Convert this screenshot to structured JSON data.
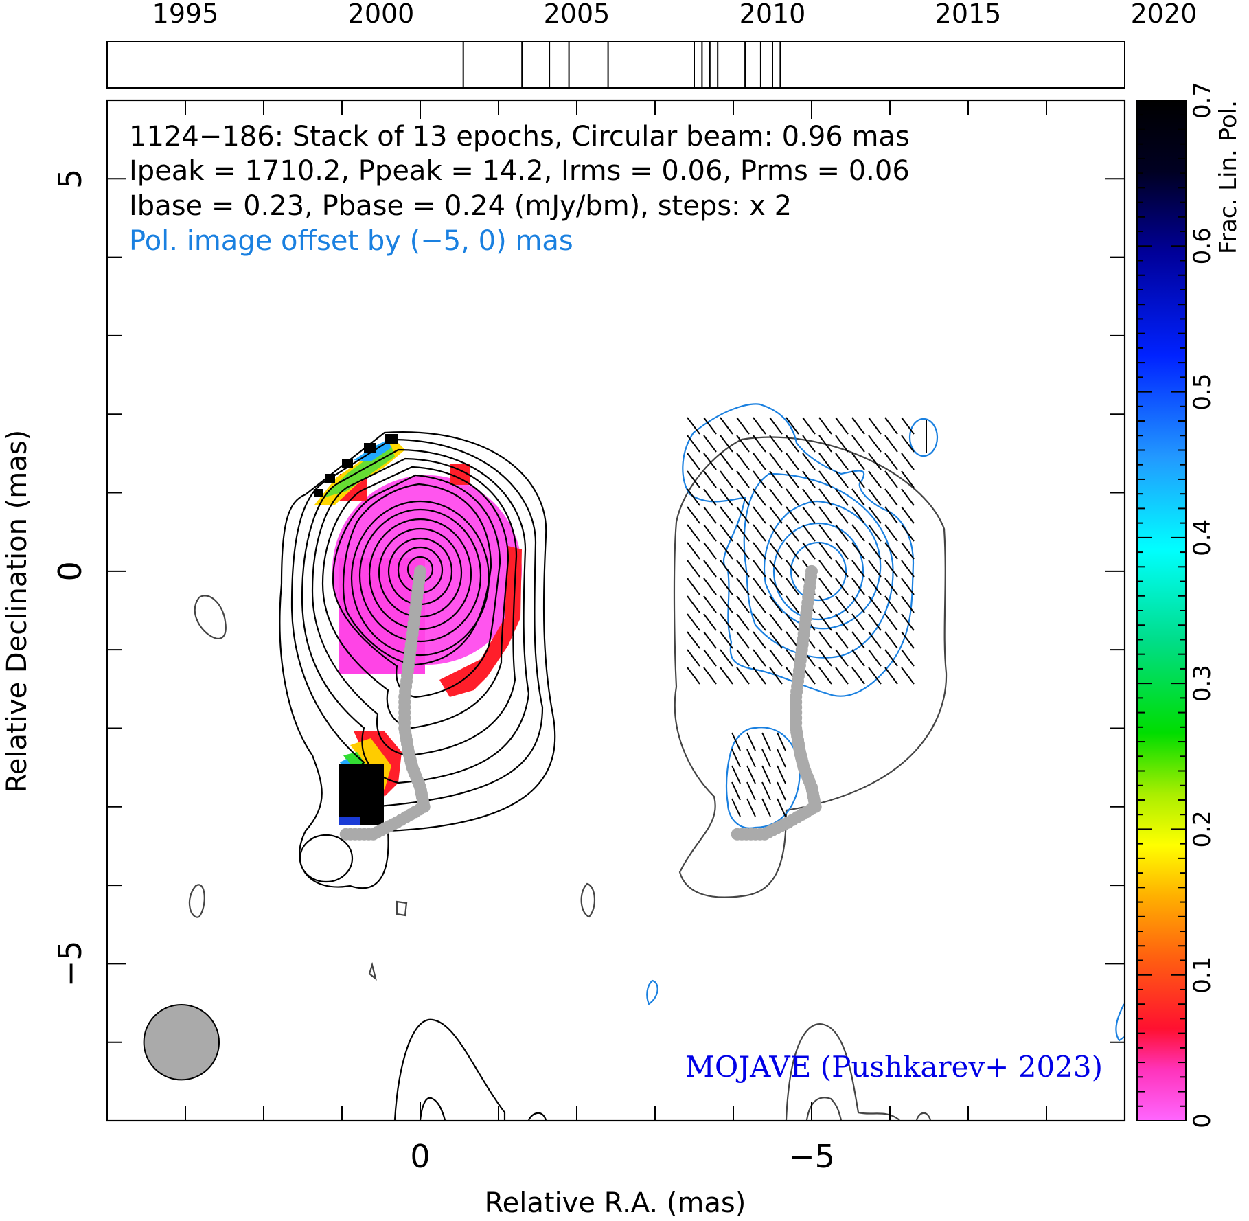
{
  "chart_data": {
    "type": "contour",
    "source_name": "1124−186",
    "header_lines": [
      "1124−186: Stack of 13 epochs, Circular beam: 0.96 mas",
      "Ipeak = 1710.2, Ppeak = 14.2, Irms = 0.06, Prms = 0.06",
      "Ibase = 0.23, Pbase = 0.24 (mJy/bm), steps: x 2"
    ],
    "offset_note": "Pol. image offset by (−5, 0) mas",
    "credit": "MOJAVE (Pushkarev+ 2023)",
    "xlabel": "Relative R.A. (mas)",
    "ylabel": "Relative Declination (mas)",
    "xlim": [
      4,
      -9
    ],
    "ylim": [
      -7,
      6
    ],
    "x_ticks": [
      {
        "value": 0,
        "label": "0"
      },
      {
        "value": -5,
        "label": "−5"
      }
    ],
    "y_ticks": [
      {
        "value": 5,
        "label": "5"
      },
      {
        "value": 0,
        "label": "0"
      },
      {
        "value": -5,
        "label": "−5"
      }
    ],
    "timeline": {
      "range": [
        1993,
        2019
      ],
      "tick_labels": [
        {
          "year": 1995,
          "label": "1995"
        },
        {
          "year": 2000,
          "label": "2000"
        },
        {
          "year": 2005,
          "label": "2005"
        },
        {
          "year": 2010,
          "label": "2010"
        },
        {
          "year": 2015,
          "label": "2015"
        },
        {
          "year": 2020,
          "label": "2020"
        }
      ],
      "epochs": [
        2002.1,
        2003.6,
        2004.3,
        2004.8,
        2005.8,
        2008.0,
        2008.2,
        2008.4,
        2008.6,
        2009.3,
        2009.7,
        2010.0,
        2010.2
      ]
    },
    "colorbar": {
      "label": "Frac. Lin. Pol.",
      "range": [
        0,
        0.7
      ],
      "ticks": [
        {
          "value": 0,
          "label": "0"
        },
        {
          "value": 0.1,
          "label": "0.1"
        },
        {
          "value": 0.2,
          "label": "0.2"
        },
        {
          "value": 0.3,
          "label": "0.3"
        },
        {
          "value": 0.4,
          "label": "0.4"
        },
        {
          "value": 0.5,
          "label": "0.5"
        },
        {
          "value": 0.6,
          "label": "0.6"
        },
        {
          "value": 0.7,
          "label": "0.7"
        }
      ]
    },
    "beam": {
      "x": 3.05,
      "y": -6.0,
      "diameter_mas": 0.96
    },
    "jet_ridge_line": [
      [
        0.0,
        0.0
      ],
      [
        0.05,
        -0.4
      ],
      [
        0.1,
        -0.8
      ],
      [
        0.15,
        -1.2
      ],
      [
        0.2,
        -1.6
      ],
      [
        0.2,
        -2.0
      ],
      [
        0.15,
        -2.3
      ],
      [
        0.1,
        -2.5
      ],
      [
        0.0,
        -2.75
      ],
      [
        -0.05,
        -3.0
      ],
      [
        0.3,
        -3.2
      ],
      [
        0.6,
        -3.35
      ],
      [
        0.95,
        -3.35
      ]
    ],
    "colors": {
      "stokes_i_contour": "#000000",
      "pol_contour": "#1a80e0",
      "ridge": "#aaaaaa",
      "offset_note": "#1a80e0",
      "credit": "#0000e6",
      "beam": "#aaaaaa"
    }
  }
}
